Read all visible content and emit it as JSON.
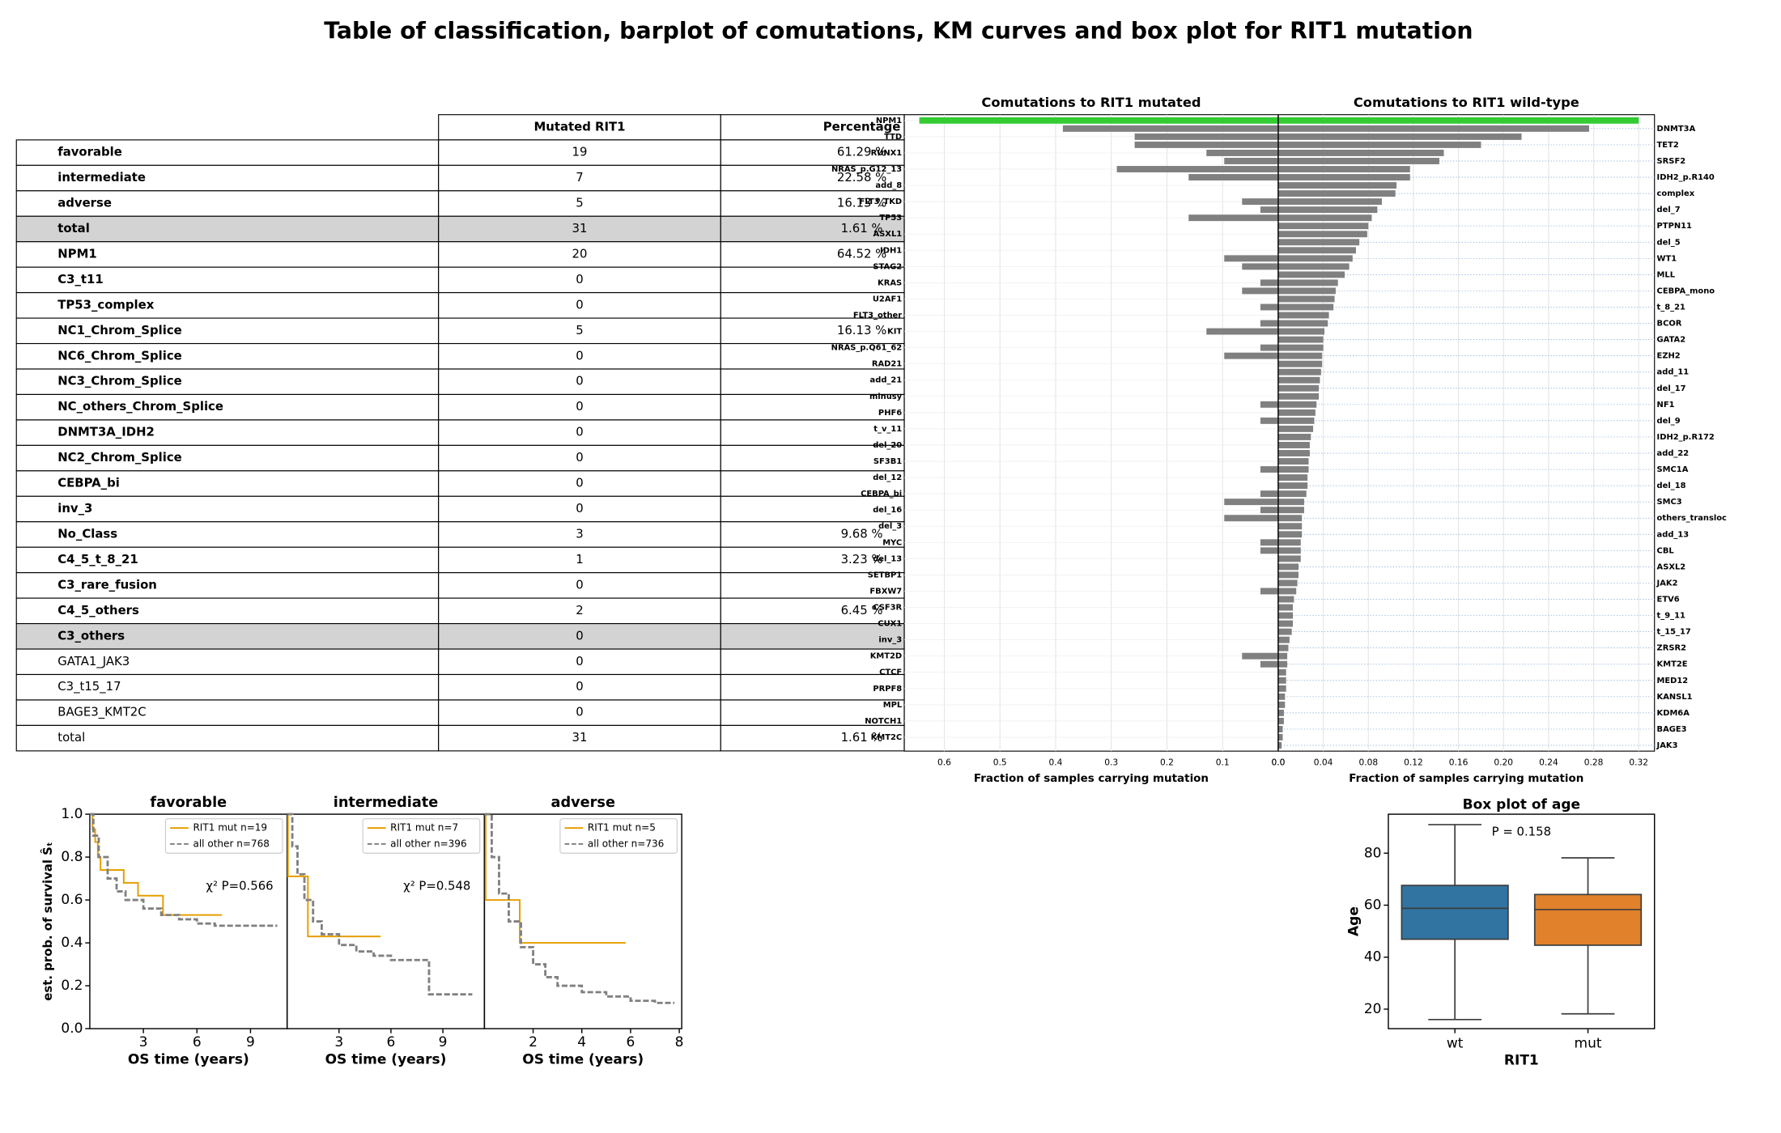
{
  "title": "Table of classification, barplot of comutations, KM curves and box plot for RIT1 mutation",
  "table": {
    "header": [
      "Mutated RIT1",
      "Percentage"
    ],
    "rows": [
      {
        "label": "favorable",
        "count": 19,
        "percentage": "61.29 %",
        "bold": true
      },
      {
        "label": "intermediate",
        "count": 7,
        "percentage": "22.58 %",
        "bold": true
      },
      {
        "label": "adverse",
        "count": 5,
        "percentage": "16.13 %",
        "bold": true
      },
      {
        "label": "total",
        "count": 31,
        "percentage": "1.61 %",
        "bold": true,
        "shaded": true
      },
      {
        "label": "NPM1",
        "count": 20,
        "percentage": "64.52 %",
        "bold": true
      },
      {
        "label": "C3_t11",
        "count": 0,
        "percentage": null,
        "bold": true
      },
      {
        "label": "TP53_complex",
        "count": 0,
        "percentage": null,
        "bold": true
      },
      {
        "label": "NC1_Chrom_Splice",
        "count": 5,
        "percentage": "16.13 %",
        "bold": true
      },
      {
        "label": "NC6_Chrom_Splice",
        "count": 0,
        "percentage": null,
        "bold": true
      },
      {
        "label": "NC3_Chrom_Splice",
        "count": 0,
        "percentage": null,
        "bold": true
      },
      {
        "label": "NC_others_Chrom_Splice",
        "count": 0,
        "percentage": null,
        "bold": true
      },
      {
        "label": "DNMT3A_IDH2",
        "count": 0,
        "percentage": null,
        "bold": true
      },
      {
        "label": "NC2_Chrom_Splice",
        "count": 0,
        "percentage": null,
        "bold": true
      },
      {
        "label": "CEBPA_bi",
        "count": 0,
        "percentage": null,
        "bold": true
      },
      {
        "label": "inv_3",
        "count": 0,
        "percentage": null,
        "bold": true
      },
      {
        "label": "No_Class",
        "count": 3,
        "percentage": "9.68 %",
        "bold": true
      },
      {
        "label": "C4_5_t_8_21",
        "count": 1,
        "percentage": "3.23 %",
        "bold": true
      },
      {
        "label": "C3_rare_fusion",
        "count": 0,
        "percentage": null,
        "bold": true
      },
      {
        "label": "C4_5_others",
        "count": 2,
        "percentage": "6.45 %",
        "bold": true
      },
      {
        "label": "C3_others",
        "count": 0,
        "percentage": null,
        "bold": true,
        "shaded": true
      },
      {
        "label": "GATA1_JAK3",
        "count": 0,
        "percentage": null,
        "bold": false
      },
      {
        "label": "C3_t15_17",
        "count": 0,
        "percentage": null,
        "bold": false
      },
      {
        "label": "BAGE3_KMT2C",
        "count": 0,
        "percentage": null,
        "bold": false
      },
      {
        "label": "total",
        "count": 31,
        "percentage": "1.61 %",
        "bold": false
      }
    ]
  },
  "chart_data": [
    {
      "type": "butterfly",
      "categories": [
        "NPM1",
        "DNMT3A",
        "TTD",
        "TET2",
        "RUNX1",
        "SRSF2",
        "NRAS_p.G12_13",
        "IDH2_p.R140",
        "add_8",
        "complex",
        "FLT3_TKD",
        "del_7",
        "TP53",
        "PTPN11",
        "ASXL1",
        "del_5",
        "IDH1",
        "WT1",
        "STAG2",
        "MLL",
        "KRAS",
        "CEBPA_mono",
        "U2AF1",
        "t_8_21",
        "FLT3_other",
        "BCOR",
        "KIT",
        "GATA2",
        "NRAS_p.Q61_62",
        "EZH2",
        "RAD21",
        "add_11",
        "add_21",
        "del_17",
        "minusy",
        "NF1",
        "PHF6",
        "del_9",
        "t_v_11",
        "IDH2_p.R172",
        "del_20",
        "add_22",
        "SF3B1",
        "SMC1A",
        "del_12",
        "del_18",
        "CEBPA_bi",
        "SMC3",
        "del_16",
        "others_transloc",
        "del_3",
        "add_13",
        "MYC",
        "CBL",
        "del_13",
        "ASXL2",
        "SETBP1",
        "JAK2",
        "FBXW7",
        "ETV6",
        "CSF3R",
        "t_9_11",
        "CUX1",
        "t_15_17",
        "inv_3",
        "ZRSR2",
        "KMT2D",
        "KMT2E",
        "CTCF",
        "MED12",
        "PRPF8",
        "KANSL1",
        "MPL",
        "KDM6A",
        "NOTCH1",
        "BAGE3",
        "KMT2C",
        "JAK3"
      ],
      "highlight": {
        "category": "NPM1",
        "color": "#33cc33"
      },
      "left": {
        "title": "Comutations to RIT1 mutated",
        "xlabel": "Fraction of samples carrying mutation",
        "color": "#808080",
        "xlim": [
          0.672,
          0
        ],
        "xticks": [
          0.6,
          0.5,
          0.4,
          0.3,
          0.2,
          0.1,
          {
            "value": 0,
            "label": "0.0"
          }
        ],
        "values": [
          0.645,
          0.387,
          0.258,
          0.258,
          0.129,
          0.097,
          0.29,
          0.161,
          0,
          0,
          0.065,
          0.032,
          0.161,
          0,
          0,
          0,
          0,
          0.097,
          0.065,
          0,
          0.032,
          0.065,
          0,
          0.032,
          0,
          0.032,
          0.129,
          0,
          0.032,
          0.097,
          0,
          0,
          0,
          0,
          0,
          0.032,
          0,
          0.032,
          0,
          0,
          0,
          0,
          0,
          0.032,
          0,
          0,
          0.032,
          0.097,
          0.032,
          0.097,
          0,
          0,
          0.032,
          0.032,
          0,
          0,
          0,
          0,
          0.032,
          0,
          0,
          0,
          0,
          0,
          0,
          0,
          0.065,
          0.032,
          0,
          0,
          0,
          0,
          0,
          0,
          0,
          0,
          0,
          0
        ]
      },
      "right": {
        "title": "Comutations to RIT1 wild-type",
        "xlabel": "Fraction of samples carrying mutation",
        "color": "#808080",
        "xlim": [
          0,
          0.334
        ],
        "xticks": [
          {
            "value": 0,
            "label": "0.0"
          },
          0.04,
          0.08,
          0.12,
          0.16,
          {
            "value": 0.2,
            "label": "0.20"
          },
          0.24,
          0.28,
          0.32
        ],
        "values": [
          0.32,
          0.276,
          0.216,
          0.18,
          0.147,
          0.143,
          0.117,
          0.117,
          0.105,
          0.104,
          0.092,
          0.088,
          0.083,
          0.08,
          0.079,
          0.072,
          0.069,
          0.066,
          0.063,
          0.059,
          0.053,
          0.051,
          0.05,
          0.049,
          0.045,
          0.044,
          0.041,
          0.04,
          0.04,
          0.039,
          0.039,
          0.038,
          0.037,
          0.036,
          0.036,
          0.034,
          0.033,
          0.032,
          0.031,
          0.029,
          0.028,
          0.028,
          0.027,
          0.027,
          0.026,
          0.026,
          0.025,
          0.023,
          0.023,
          0.021,
          0.021,
          0.021,
          0.02,
          0.02,
          0.02,
          0.018,
          0.018,
          0.017,
          0.016,
          0.014,
          0.013,
          0.013,
          0.013,
          0.012,
          0.01,
          0.009,
          0.008,
          0.008,
          0.007,
          0.007,
          0.007,
          0.006,
          0.006,
          0.005,
          0.005,
          0.004,
          0.004,
          0.003
        ]
      }
    },
    {
      "type": "km",
      "title": "favorable",
      "xlabel": "OS time (years)",
      "ylabel": "est. prob. of survival Ŝₜ",
      "xlim": [
        0,
        11.05
      ],
      "xticks": [
        3,
        6,
        9
      ],
      "ylim": [
        0,
        1
      ],
      "yticks": [
        {
          "value": 0,
          "label": "0.0"
        },
        0.2,
        0.4,
        0.6,
        0.8,
        {
          "value": 1,
          "label": "1.0"
        }
      ],
      "annotation": "χ² P=0.566",
      "legend": "upper right",
      "series": [
        {
          "name": "RIT1  mut n=19",
          "color": "#e69f00",
          "x": [
            0,
            0.15,
            0.3,
            0.45,
            0.6,
            1.9,
            2.7,
            4.1,
            7.4
          ],
          "values": [
            1,
            0.93,
            0.87,
            0.8,
            0.74,
            0.68,
            0.62,
            0.53,
            0.53
          ]
        },
        {
          "name": "all other  n=768",
          "color": "#808080",
          "dashed": true,
          "x": [
            0,
            0.2,
            0.5,
            1,
            1.5,
            2,
            3,
            4,
            5,
            6,
            7,
            8,
            10.5
          ],
          "values": [
            1,
            0.9,
            0.8,
            0.7,
            0.64,
            0.6,
            0.56,
            0.53,
            0.51,
            0.49,
            0.48,
            0.48,
            0.48
          ]
        }
      ]
    },
    {
      "type": "km",
      "title": "intermediate",
      "xlabel": "OS time (years)",
      "xlim": [
        0,
        11.4
      ],
      "xticks": [
        3,
        6,
        9
      ],
      "ylim": [
        0,
        1
      ],
      "annotation": "χ² P=0.548",
      "legend": "upper right",
      "series": [
        {
          "name": "RIT1  mut n=7",
          "color": "#e69f00",
          "x": [
            0,
            0.05,
            1.2,
            5.4
          ],
          "values": [
            1,
            0.71,
            0.43,
            0.43
          ]
        },
        {
          "name": "all other  n=396",
          "color": "#808080",
          "dashed": true,
          "x": [
            0,
            0.3,
            0.6,
            1,
            1.5,
            2,
            3,
            4,
            5,
            6,
            8.2,
            10.7
          ],
          "values": [
            1,
            0.85,
            0.72,
            0.6,
            0.5,
            0.44,
            0.39,
            0.36,
            0.34,
            0.32,
            0.16,
            0.16
          ]
        }
      ]
    },
    {
      "type": "km",
      "title": "adverse",
      "xlabel": "OS time (years)",
      "xlim": [
        0,
        8.1
      ],
      "xticks": [
        2,
        4,
        6,
        8
      ],
      "ylim": [
        0,
        1
      ],
      "legend": "upper right",
      "series": [
        {
          "name": "RIT1  mut n=5",
          "color": "#e69f00",
          "x": [
            0,
            0.05,
            1.45,
            5.8
          ],
          "values": [
            1,
            0.6,
            0.4,
            0.4
          ]
        },
        {
          "name": "all other  n=736",
          "color": "#808080",
          "dashed": true,
          "x": [
            0,
            0.3,
            0.6,
            1,
            1.5,
            2,
            2.5,
            3,
            4,
            5,
            6,
            7,
            7.8
          ],
          "values": [
            1,
            0.8,
            0.63,
            0.5,
            0.38,
            0.3,
            0.24,
            0.2,
            0.17,
            0.15,
            0.13,
            0.12,
            0.12
          ]
        }
      ]
    },
    {
      "type": "box",
      "title": "Box plot of age",
      "xlabel": "RIT1",
      "ylabel": "Age",
      "annotation": "P = 0.158",
      "categories": [
        "wt",
        "mut"
      ],
      "colors": [
        "#3274a1",
        "#e1812c"
      ],
      "ylim": [
        12.5,
        95
      ],
      "yticks": [
        20,
        40,
        60,
        80
      ],
      "boxes": [
        {
          "whislo": 16,
          "q1": 46.9,
          "med": 58.8,
          "q3": 67.6,
          "whishi": 91
        },
        {
          "whislo": 18.2,
          "q1": 44.6,
          "med": 58.3,
          "q3": 64.1,
          "whishi": 78.2
        }
      ]
    }
  ]
}
